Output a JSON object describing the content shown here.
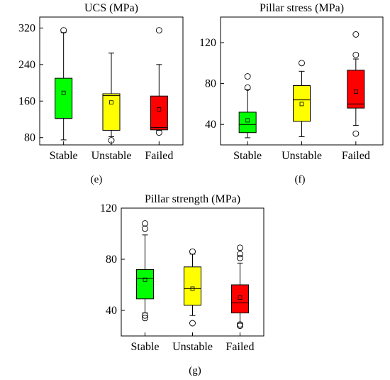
{
  "panels": {
    "e": {
      "label": "(e)"
    },
    "f": {
      "label": "(f)"
    },
    "g": {
      "label": "(g)"
    }
  },
  "chart_data": [
    {
      "type": "box",
      "title": "UCS (MPa)",
      "xlabel": "",
      "ylabel": "",
      "categories": [
        "Stable",
        "Unstable",
        "Failed"
      ],
      "ylim": [
        64,
        344
      ],
      "yticks": [
        80,
        160,
        240,
        320
      ],
      "colors": [
        "#00ff00",
        "#ffff00",
        "#ff0000"
      ],
      "boxes": [
        {
          "min": 75,
          "q1": 122,
          "median": 122,
          "q3": 210,
          "max": 310,
          "mean": 178,
          "outliers": [
            315
          ]
        },
        {
          "min": 82,
          "q1": 96,
          "median": 172,
          "q3": 176,
          "max": 265,
          "mean": 157,
          "outliers": [
            74
          ]
        },
        {
          "min": 96,
          "q1": 97,
          "median": 102,
          "q3": 171,
          "max": 240,
          "mean": 142,
          "outliers": [
            91,
            315
          ]
        }
      ]
    },
    {
      "type": "box",
      "title": "Pillar stress (MPa)",
      "xlabel": "",
      "ylabel": "",
      "categories": [
        "Stable",
        "Unstable",
        "Failed"
      ],
      "ylim": [
        20,
        145
      ],
      "yticks": [
        40,
        80,
        120
      ],
      "colors": [
        "#00ff00",
        "#ffff00",
        "#ff0000"
      ],
      "boxes": [
        {
          "min": 27,
          "q1": 32,
          "median": 40,
          "q3": 52,
          "max": 74,
          "mean": 44,
          "outliers": [
            76,
            87
          ]
        },
        {
          "min": 28,
          "q1": 43,
          "median": 64,
          "q3": 78,
          "max": 92,
          "mean": 60,
          "outliers": [
            100
          ]
        },
        {
          "min": 39,
          "q1": 56,
          "median": 60,
          "q3": 93,
          "max": 104,
          "mean": 72,
          "outliers": [
            31,
            108,
            128
          ]
        }
      ]
    },
    {
      "type": "box",
      "title": "Pillar strength (MPa)",
      "xlabel": "",
      "ylabel": "",
      "categories": [
        "Stable",
        "Unstable",
        "Failed"
      ],
      "ylim": [
        20,
        120
      ],
      "yticks": [
        40,
        80,
        120
      ],
      "colors": [
        "#00ff00",
        "#ffff00",
        "#ff0000"
      ],
      "boxes": [
        {
          "min": 38,
          "q1": 49,
          "median": 65,
          "q3": 72,
          "max": 99,
          "mean": 64,
          "outliers": [
            34,
            36,
            104,
            108
          ]
        },
        {
          "min": 36,
          "q1": 44,
          "median": 57,
          "q3": 74,
          "max": 84,
          "mean": 57,
          "outliers": [
            30,
            86
          ]
        },
        {
          "min": 30,
          "q1": 38,
          "median": 46,
          "q3": 60,
          "max": 77,
          "mean": 50,
          "outliers": [
            28,
            29,
            81,
            84,
            89
          ]
        }
      ]
    }
  ]
}
